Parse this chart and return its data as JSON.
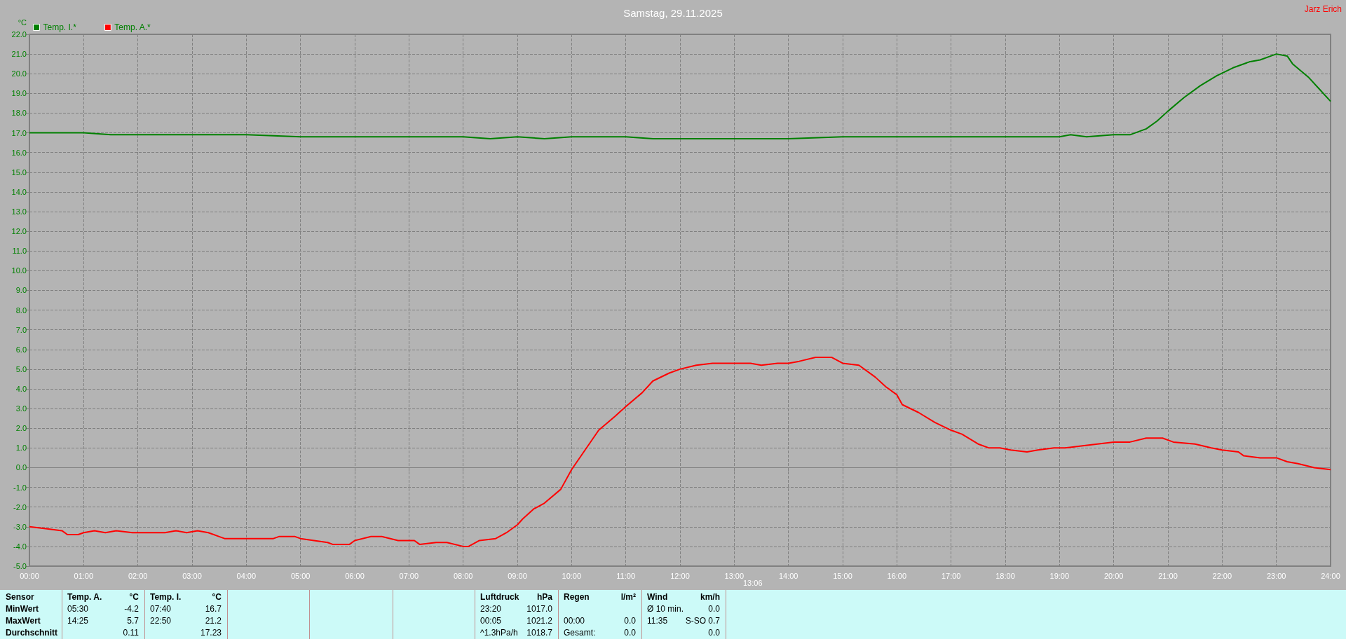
{
  "chart_data": {
    "type": "line",
    "title": "Samstag, 29.11.2025",
    "ylabel": "°C",
    "legend": "top left",
    "grid": true,
    "line_style": "solid",
    "marker": "none",
    "xlim": [
      0,
      24
    ],
    "xticks": [
      {
        "value": 0,
        "label": "00:00"
      },
      {
        "value": 1,
        "label": "01:00"
      },
      {
        "value": 2,
        "label": "02:00"
      },
      {
        "value": 3,
        "label": "03:00"
      },
      {
        "value": 4,
        "label": "04:00"
      },
      {
        "value": 5,
        "label": "05:00"
      },
      {
        "value": 6,
        "label": "06:00"
      },
      {
        "value": 7,
        "label": "07:00"
      },
      {
        "value": 8,
        "label": "08:00"
      },
      {
        "value": 9,
        "label": "09:00"
      },
      {
        "value": 10,
        "label": "10:00"
      },
      {
        "value": 11,
        "label": "11:00"
      },
      {
        "value": 12,
        "label": "12:00"
      },
      {
        "value": 13,
        "label": "13:00"
      },
      {
        "value": 14,
        "label": "14:00"
      },
      {
        "value": 15,
        "label": "15:00"
      },
      {
        "value": 16,
        "label": "16:00"
      },
      {
        "value": 17,
        "label": "17:00"
      },
      {
        "value": 18,
        "label": "18:00"
      },
      {
        "value": 19,
        "label": "19:00"
      },
      {
        "value": 20,
        "label": "20:00"
      },
      {
        "value": 21,
        "label": "21:00"
      },
      {
        "value": 22,
        "label": "22:00"
      },
      {
        "value": 23,
        "label": "23:00"
      },
      {
        "value": 24,
        "label": "24:00"
      }
    ],
    "ylim": [
      -5,
      22
    ],
    "yticks": [
      {
        "value": -5,
        "label": "-5.0"
      },
      {
        "value": -4,
        "label": "-4.0"
      },
      {
        "value": -3,
        "label": "-3.0"
      },
      {
        "value": -2,
        "label": "-2.0"
      },
      {
        "value": -1,
        "label": "-1.0"
      },
      {
        "value": 0,
        "label": "0.0"
      },
      {
        "value": 1,
        "label": "1.0"
      },
      {
        "value": 2,
        "label": "2.0"
      },
      {
        "value": 3,
        "label": "3.0"
      },
      {
        "value": 4,
        "label": "4.0"
      },
      {
        "value": 5,
        "label": "5.0"
      },
      {
        "value": 6,
        "label": "6.0"
      },
      {
        "value": 7,
        "label": "7.0"
      },
      {
        "value": 8,
        "label": "8.0"
      },
      {
        "value": 9,
        "label": "9.0"
      },
      {
        "value": 10,
        "label": "10.0"
      },
      {
        "value": 11,
        "label": "11.0"
      },
      {
        "value": 12,
        "label": "12.0"
      },
      {
        "value": 13,
        "label": "13.0"
      },
      {
        "value": 14,
        "label": "14.0"
      },
      {
        "value": 15,
        "label": "15.0"
      },
      {
        "value": 16,
        "label": "16.0"
      },
      {
        "value": 17,
        "label": "17.0"
      },
      {
        "value": 18,
        "label": "18.0"
      },
      {
        "value": 19,
        "label": "19.0"
      },
      {
        "value": 20,
        "label": "20.0"
      },
      {
        "value": 21,
        "label": "21.0"
      },
      {
        "value": 22,
        "label": "22.0"
      }
    ],
    "series": [
      {
        "name": "Temp. I.*",
        "color": "#008000",
        "x": [
          0,
          1,
          1.5,
          2,
          3,
          4,
          5,
          6,
          7,
          8,
          8.5,
          9,
          9.5,
          10,
          10.5,
          11,
          11.5,
          12,
          13,
          14,
          15,
          16,
          17,
          18,
          19,
          19.2,
          19.5,
          20,
          20.3,
          20.6,
          20.8,
          21,
          21.3,
          21.6,
          21.9,
          22.2,
          22.5,
          22.7,
          22.9,
          23,
          23.2,
          23.3,
          23.6,
          23.8,
          24
        ],
        "values": [
          17.0,
          17.0,
          16.9,
          16.9,
          16.9,
          16.9,
          16.8,
          16.8,
          16.8,
          16.8,
          16.7,
          16.8,
          16.7,
          16.8,
          16.8,
          16.8,
          16.7,
          16.7,
          16.7,
          16.7,
          16.8,
          16.8,
          16.8,
          16.8,
          16.8,
          16.9,
          16.8,
          16.9,
          16.9,
          17.2,
          17.6,
          18.1,
          18.8,
          19.4,
          19.9,
          20.3,
          20.6,
          20.7,
          20.9,
          21.0,
          20.9,
          20.5,
          19.8,
          19.2,
          18.6
        ]
      },
      {
        "name": "Temp. A.*",
        "color": "#ff0000",
        "x": [
          0,
          0.3,
          0.6,
          0.7,
          0.9,
          1,
          1.2,
          1.4,
          1.6,
          1.9,
          2.5,
          2.7,
          2.9,
          3.1,
          3.3,
          3.5,
          3.6,
          4,
          4.5,
          4.6,
          4.9,
          5,
          5.5,
          5.6,
          5.9,
          6,
          6.3,
          6.5,
          6.8,
          7.1,
          7.2,
          7.5,
          7.7,
          8,
          8.1,
          8.3,
          8.6,
          8.8,
          9,
          9.1,
          9.3,
          9.5,
          9.8,
          10,
          10.2,
          10.5,
          10.8,
          11,
          11.3,
          11.5,
          11.8,
          12,
          12.3,
          12.6,
          13,
          13.3,
          13.5,
          13.8,
          14,
          14.2,
          14.5,
          14.8,
          15,
          15.3,
          15.6,
          15.8,
          16,
          16.1,
          16.4,
          16.7,
          17,
          17.2,
          17.5,
          17.7,
          17.9,
          18.1,
          18.4,
          18.6,
          18.9,
          19.1,
          19.4,
          19.7,
          20,
          20.3,
          20.6,
          20.9,
          21.1,
          21.5,
          21.8,
          22,
          22.3,
          22.4,
          22.7,
          23,
          23.2,
          23.4,
          23.7,
          24
        ],
        "values": [
          -3.0,
          -3.1,
          -3.2,
          -3.4,
          -3.4,
          -3.3,
          -3.2,
          -3.3,
          -3.2,
          -3.3,
          -3.3,
          -3.2,
          -3.3,
          -3.2,
          -3.3,
          -3.5,
          -3.6,
          -3.6,
          -3.6,
          -3.5,
          -3.5,
          -3.6,
          -3.8,
          -3.9,
          -3.9,
          -3.7,
          -3.5,
          -3.5,
          -3.7,
          -3.7,
          -3.9,
          -3.8,
          -3.8,
          -4.0,
          -4.0,
          -3.7,
          -3.6,
          -3.3,
          -2.9,
          -2.6,
          -2.1,
          -1.8,
          -1.1,
          -0.1,
          0.7,
          1.9,
          2.6,
          3.1,
          3.8,
          4.4,
          4.8,
          5.0,
          5.2,
          5.3,
          5.3,
          5.3,
          5.2,
          5.3,
          5.3,
          5.4,
          5.6,
          5.6,
          5.3,
          5.2,
          4.6,
          4.1,
          3.7,
          3.2,
          2.8,
          2.3,
          1.9,
          1.7,
          1.2,
          1.0,
          1.0,
          0.9,
          0.8,
          0.9,
          1.0,
          1.0,
          1.1,
          1.2,
          1.3,
          1.3,
          1.5,
          1.5,
          1.3,
          1.2,
          1.0,
          0.9,
          0.8,
          0.6,
          0.5,
          0.5,
          0.3,
          0.2,
          0.0,
          -0.1
        ]
      }
    ],
    "annotations": [
      "Sensor",
      "MinWert",
      "MaxWert",
      "Durchschnitt",
      "Temp. A.",
      "°C",
      "05:30",
      "-4.2",
      "14:25",
      "5.7",
      "0.11",
      "Temp. I.",
      "°C",
      "07:40",
      "16.7",
      "22:50",
      "21.2",
      "17.23",
      "Luftdruck",
      "hPa",
      "23:20",
      "1017.0",
      "00:05",
      "1021.2",
      "^1.3hPa/h",
      "1018.7",
      "Regen",
      "l/m²",
      "00:00",
      "0.0",
      "Gesamt:",
      "0.0",
      "Wind",
      "km/h",
      "Ø 10 min.",
      "0.0",
      "11:35",
      "S-SO 0.7",
      "0.0",
      "Jarz Erich",
      "13:06"
    ]
  }
}
